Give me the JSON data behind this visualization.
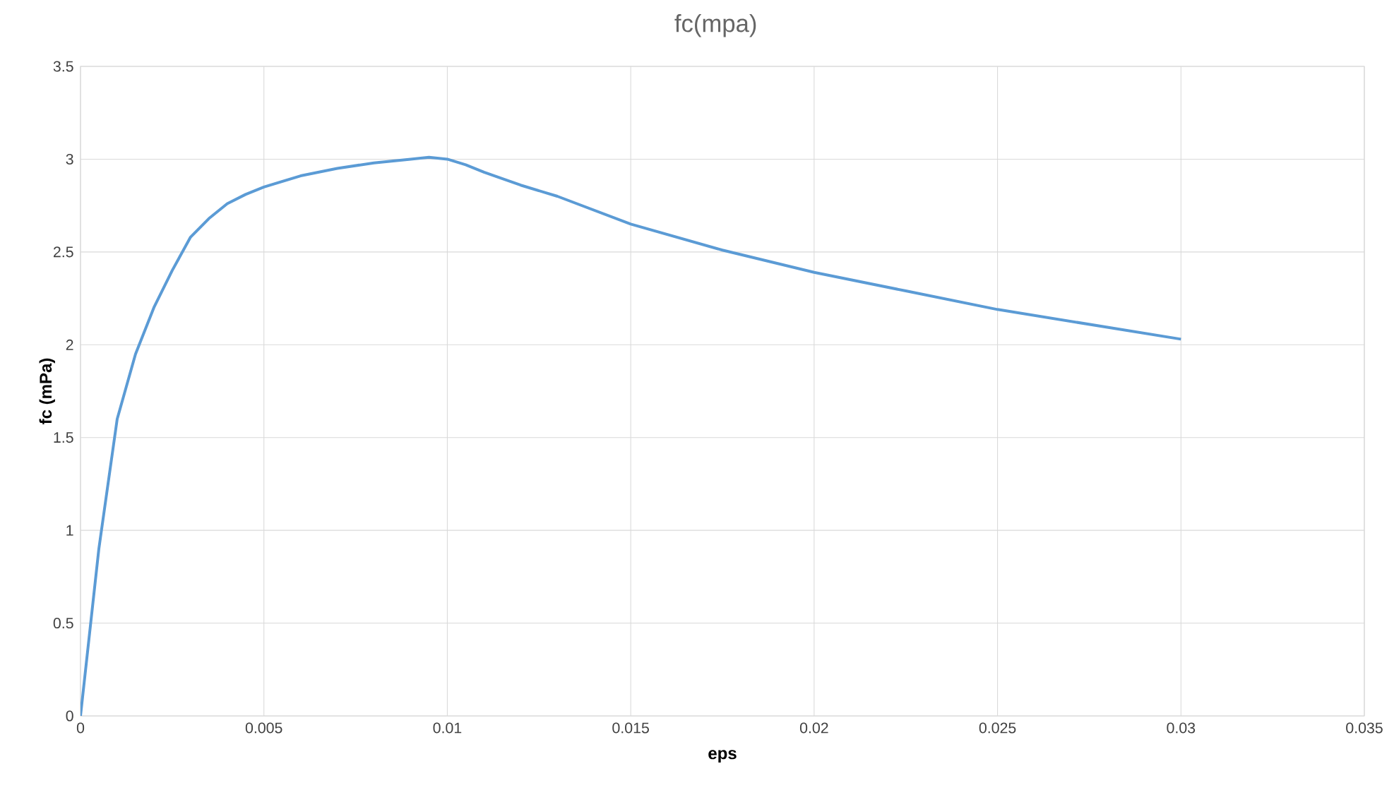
{
  "chart_data": {
    "type": "line",
    "title": "fc(mpa)",
    "xlabel": "eps",
    "ylabel": "fc (mPa)",
    "x": [
      0,
      0.0005,
      0.001,
      0.0015,
      0.002,
      0.0025,
      0.003,
      0.0035,
      0.004,
      0.0045,
      0.005,
      0.006,
      0.007,
      0.008,
      0.009,
      0.0095,
      0.01,
      0.0105,
      0.011,
      0.012,
      0.013,
      0.015,
      0.0175,
      0.02,
      0.0225,
      0.025,
      0.0275,
      0.03
    ],
    "series": [
      {
        "color": "#5b9bd5",
        "values": [
          0,
          0.9,
          1.6,
          1.95,
          2.2,
          2.4,
          2.58,
          2.68,
          2.76,
          2.81,
          2.85,
          2.91,
          2.95,
          2.98,
          3.0,
          3.01,
          3.0,
          2.97,
          2.93,
          2.86,
          2.8,
          2.65,
          2.51,
          2.39,
          2.29,
          2.19,
          2.11,
          2.03
        ]
      }
    ],
    "xlim": [
      0,
      0.035
    ],
    "xticks": [
      0,
      0.005,
      0.01,
      0.015,
      0.02,
      0.025,
      0.03,
      0.035
    ],
    "ylim": [
      0,
      3.5
    ],
    "yticks": [
      0,
      0.5,
      1,
      1.5,
      2,
      2.5,
      3,
      3.5
    ],
    "grid": true,
    "marker": "none",
    "line_style": "solid"
  }
}
